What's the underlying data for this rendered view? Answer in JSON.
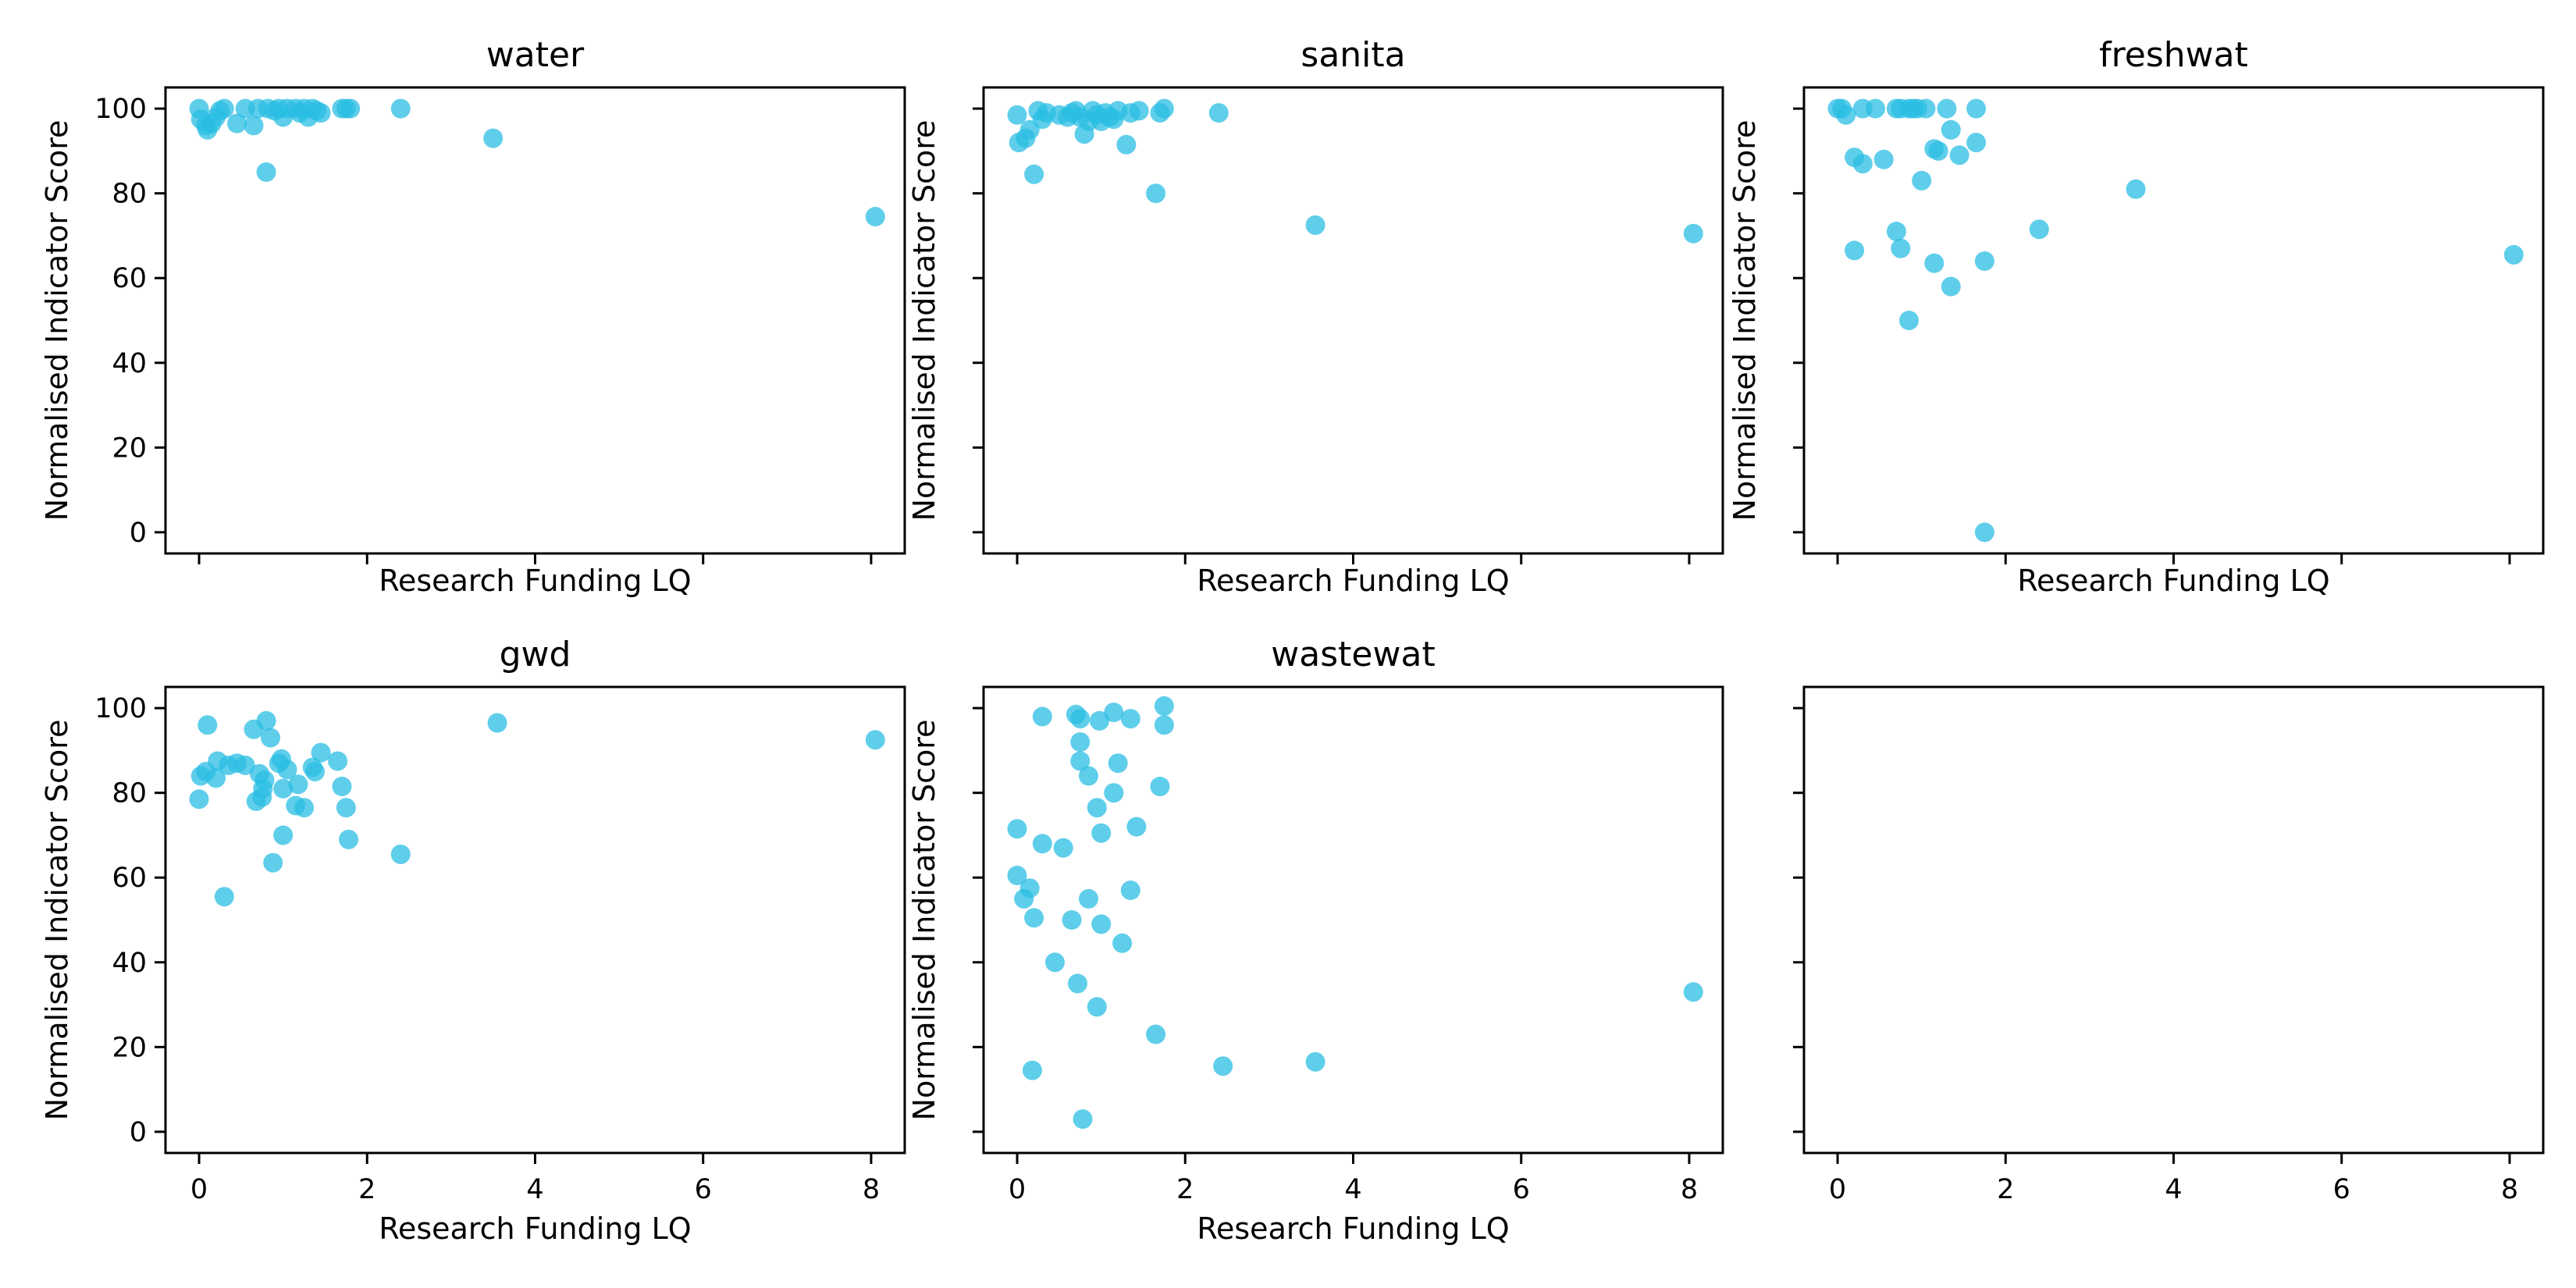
{
  "colors": {
    "marker": "#29BDE3",
    "axis": "#000000",
    "background": "#ffffff"
  },
  "chart_data": [
    {
      "type": "scatter",
      "title": "water",
      "xlabel": "Research Funding LQ",
      "ylabel": "Normalised Indicator Score",
      "xlim": [
        -0.4,
        8.4
      ],
      "ylim": [
        -5,
        105
      ],
      "xticks": [
        0,
        2,
        4,
        6,
        8
      ],
      "yticks": [
        0,
        20,
        40,
        60,
        80,
        100
      ],
      "show_xtick_labels": false,
      "show_ytick_labels": true,
      "show_xlabel": true,
      "show_ylabel": true,
      "grid": false,
      "points": [
        [
          0.0,
          100
        ],
        [
          0.02,
          97.5
        ],
        [
          0.08,
          96
        ],
        [
          0.1,
          95
        ],
        [
          0.15,
          96.5
        ],
        [
          0.2,
          98
        ],
        [
          0.25,
          99.5
        ],
        [
          0.3,
          100
        ],
        [
          0.45,
          96.5
        ],
        [
          0.55,
          100
        ],
        [
          0.65,
          96
        ],
        [
          0.7,
          100
        ],
        [
          0.8,
          85
        ],
        [
          0.82,
          100
        ],
        [
          0.9,
          99.5
        ],
        [
          0.95,
          100
        ],
        [
          1.0,
          98
        ],
        [
          1.05,
          100
        ],
        [
          1.15,
          100
        ],
        [
          1.2,
          99
        ],
        [
          1.25,
          100
        ],
        [
          1.3,
          98
        ],
        [
          1.35,
          100
        ],
        [
          1.4,
          99.5
        ],
        [
          1.45,
          99
        ],
        [
          1.7,
          100
        ],
        [
          1.75,
          100
        ],
        [
          1.8,
          100
        ],
        [
          2.4,
          100
        ],
        [
          3.5,
          93
        ],
        [
          8.05,
          74.5
        ]
      ]
    },
    {
      "type": "scatter",
      "title": "sanita",
      "xlabel": "Research Funding LQ",
      "ylabel": "Normalised Indicator Score",
      "xlim": [
        -0.4,
        8.4
      ],
      "ylim": [
        -5,
        105
      ],
      "xticks": [
        0,
        2,
        4,
        6,
        8
      ],
      "yticks": [
        0,
        20,
        40,
        60,
        80,
        100
      ],
      "show_xtick_labels": false,
      "show_ytick_labels": false,
      "show_xlabel": true,
      "show_ylabel": true,
      "grid": false,
      "points": [
        [
          0.0,
          98.5
        ],
        [
          0.02,
          92
        ],
        [
          0.1,
          93
        ],
        [
          0.15,
          95
        ],
        [
          0.2,
          84.5
        ],
        [
          0.25,
          99.5
        ],
        [
          0.3,
          97.5
        ],
        [
          0.35,
          99
        ],
        [
          0.5,
          98.5
        ],
        [
          0.6,
          98
        ],
        [
          0.65,
          99
        ],
        [
          0.7,
          99.5
        ],
        [
          0.75,
          98
        ],
        [
          0.8,
          94
        ],
        [
          0.85,
          97
        ],
        [
          0.9,
          99.5
        ],
        [
          0.95,
          98.5
        ],
        [
          1.0,
          97
        ],
        [
          1.05,
          99
        ],
        [
          1.1,
          98
        ],
        [
          1.15,
          97.5
        ],
        [
          1.2,
          99.5
        ],
        [
          1.3,
          91.5
        ],
        [
          1.35,
          99
        ],
        [
          1.45,
          99.5
        ],
        [
          1.65,
          80
        ],
        [
          1.7,
          99
        ],
        [
          1.75,
          100
        ],
        [
          2.4,
          99
        ],
        [
          3.55,
          72.5
        ],
        [
          8.05,
          70.5
        ]
      ]
    },
    {
      "type": "scatter",
      "title": "freshwat",
      "xlabel": "Research Funding LQ",
      "ylabel": "Normalised Indicator Score",
      "xlim": [
        -0.4,
        8.4
      ],
      "ylim": [
        -5,
        105
      ],
      "xticks": [
        0,
        2,
        4,
        6,
        8
      ],
      "yticks": [
        0,
        20,
        40,
        60,
        80,
        100
      ],
      "show_xtick_labels": false,
      "show_ytick_labels": false,
      "show_xlabel": true,
      "show_ylabel": true,
      "grid": false,
      "points": [
        [
          0.0,
          100
        ],
        [
          0.05,
          100
        ],
        [
          0.1,
          98.5
        ],
        [
          0.2,
          66.5
        ],
        [
          0.2,
          88.5
        ],
        [
          0.3,
          100
        ],
        [
          0.3,
          87
        ],
        [
          0.45,
          100
        ],
        [
          0.55,
          88
        ],
        [
          0.7,
          100
        ],
        [
          0.7,
          71
        ],
        [
          0.75,
          100
        ],
        [
          0.75,
          67
        ],
        [
          0.85,
          100
        ],
        [
          0.85,
          50
        ],
        [
          0.9,
          100
        ],
        [
          0.95,
          100
        ],
        [
          1.0,
          83
        ],
        [
          1.05,
          100
        ],
        [
          1.15,
          90.5
        ],
        [
          1.15,
          63.5
        ],
        [
          1.2,
          90
        ],
        [
          1.3,
          100
        ],
        [
          1.35,
          95
        ],
        [
          1.35,
          58
        ],
        [
          1.45,
          89
        ],
        [
          1.65,
          100
        ],
        [
          1.65,
          92
        ],
        [
          1.75,
          64
        ],
        [
          1.75,
          0
        ],
        [
          2.4,
          71.5
        ],
        [
          3.55,
          81
        ],
        [
          8.05,
          65.5
        ]
      ]
    },
    {
      "type": "scatter",
      "title": "gwd",
      "xlabel": "Research Funding LQ",
      "ylabel": "Normalised Indicator Score",
      "xlim": [
        -0.4,
        8.4
      ],
      "ylim": [
        -5,
        105
      ],
      "xticks": [
        0,
        2,
        4,
        6,
        8
      ],
      "yticks": [
        0,
        20,
        40,
        60,
        80,
        100
      ],
      "show_xtick_labels": true,
      "show_ytick_labels": true,
      "show_xlabel": true,
      "show_ylabel": true,
      "grid": false,
      "points": [
        [
          0.0,
          78.5
        ],
        [
          0.02,
          84
        ],
        [
          0.08,
          85
        ],
        [
          0.1,
          96
        ],
        [
          0.2,
          83.5
        ],
        [
          0.22,
          87.5
        ],
        [
          0.3,
          55.5
        ],
        [
          0.35,
          86.5
        ],
        [
          0.45,
          87
        ],
        [
          0.55,
          86.5
        ],
        [
          0.65,
          95
        ],
        [
          0.68,
          78
        ],
        [
          0.72,
          84.5
        ],
        [
          0.75,
          79
        ],
        [
          0.76,
          81
        ],
        [
          0.78,
          83
        ],
        [
          0.8,
          97
        ],
        [
          0.85,
          93
        ],
        [
          0.88,
          63.5
        ],
        [
          0.95,
          87
        ],
        [
          0.98,
          88
        ],
        [
          1.0,
          81
        ],
        [
          1.0,
          70
        ],
        [
          1.05,
          85.5
        ],
        [
          1.15,
          77
        ],
        [
          1.18,
          82
        ],
        [
          1.25,
          76.5
        ],
        [
          1.35,
          86
        ],
        [
          1.38,
          85
        ],
        [
          1.45,
          89.5
        ],
        [
          1.65,
          87.5
        ],
        [
          1.7,
          81.5
        ],
        [
          1.75,
          76.5
        ],
        [
          1.78,
          69
        ],
        [
          2.4,
          65.5
        ],
        [
          3.55,
          96.5
        ],
        [
          8.05,
          92.5
        ]
      ]
    },
    {
      "type": "scatter",
      "title": "wastewat",
      "xlabel": "Research Funding LQ",
      "ylabel": "Normalised Indicator Score",
      "xlim": [
        -0.4,
        8.4
      ],
      "ylim": [
        -5,
        105
      ],
      "xticks": [
        0,
        2,
        4,
        6,
        8
      ],
      "yticks": [
        0,
        20,
        40,
        60,
        80,
        100
      ],
      "show_xtick_labels": true,
      "show_ytick_labels": false,
      "show_xlabel": true,
      "show_ylabel": true,
      "grid": false,
      "points": [
        [
          0.0,
          71.5
        ],
        [
          0.0,
          60.5
        ],
        [
          0.08,
          55
        ],
        [
          0.15,
          57.5
        ],
        [
          0.18,
          14.5
        ],
        [
          0.2,
          50.5
        ],
        [
          0.3,
          98
        ],
        [
          0.3,
          68
        ],
        [
          0.45,
          40
        ],
        [
          0.55,
          67
        ],
        [
          0.65,
          50
        ],
        [
          0.7,
          98.5
        ],
        [
          0.72,
          35
        ],
        [
          0.75,
          97.5
        ],
        [
          0.75,
          92
        ],
        [
          0.75,
          87.5
        ],
        [
          0.78,
          3
        ],
        [
          0.85,
          84
        ],
        [
          0.85,
          55
        ],
        [
          0.95,
          76.5
        ],
        [
          0.95,
          29.5
        ],
        [
          0.98,
          97
        ],
        [
          1.0,
          49
        ],
        [
          1.0,
          70.5
        ],
        [
          1.15,
          80
        ],
        [
          1.15,
          99
        ],
        [
          1.2,
          87
        ],
        [
          1.25,
          44.5
        ],
        [
          1.35,
          97.5
        ],
        [
          1.35,
          57
        ],
        [
          1.42,
          72
        ],
        [
          1.65,
          23
        ],
        [
          1.7,
          81.5
        ],
        [
          1.75,
          100.5
        ],
        [
          1.75,
          96
        ],
        [
          2.45,
          15.5
        ],
        [
          3.55,
          16.5
        ],
        [
          8.05,
          33
        ]
      ]
    },
    {
      "type": "scatter",
      "title": "",
      "xlabel": "",
      "ylabel": "",
      "xlim": [
        -0.4,
        8.4
      ],
      "ylim": [
        -5,
        105
      ],
      "xticks": [
        0,
        2,
        4,
        6,
        8
      ],
      "yticks": [
        0,
        20,
        40,
        60,
        80,
        100
      ],
      "show_xtick_labels": true,
      "show_ytick_labels": false,
      "show_xlabel": false,
      "show_ylabel": false,
      "grid": false,
      "points": []
    }
  ]
}
